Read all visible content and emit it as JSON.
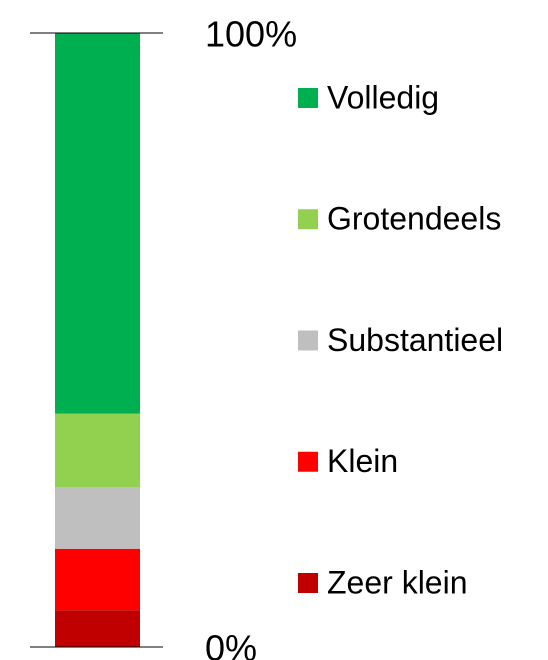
{
  "chart_data": {
    "type": "bar",
    "stacked": true,
    "categories": [
      null
    ],
    "series": [
      {
        "name": "Zeer klein",
        "color": "#c00000",
        "values": [
          6
        ]
      },
      {
        "name": "Klein",
        "color": "#ff0000",
        "values": [
          10
        ]
      },
      {
        "name": "Substantieel",
        "color": "#bfbfbf",
        "values": [
          10
        ]
      },
      {
        "name": "Grotendeels",
        "color": "#92d050",
        "values": [
          12
        ]
      },
      {
        "name": "Volledig",
        "color": "#00b050",
        "values": [
          62
        ]
      }
    ],
    "ylim": [
      0,
      100
    ],
    "yticks": [
      {
        "value": 0,
        "label": "0%"
      },
      {
        "value": 100,
        "label": "100%"
      }
    ],
    "legend": "right"
  }
}
